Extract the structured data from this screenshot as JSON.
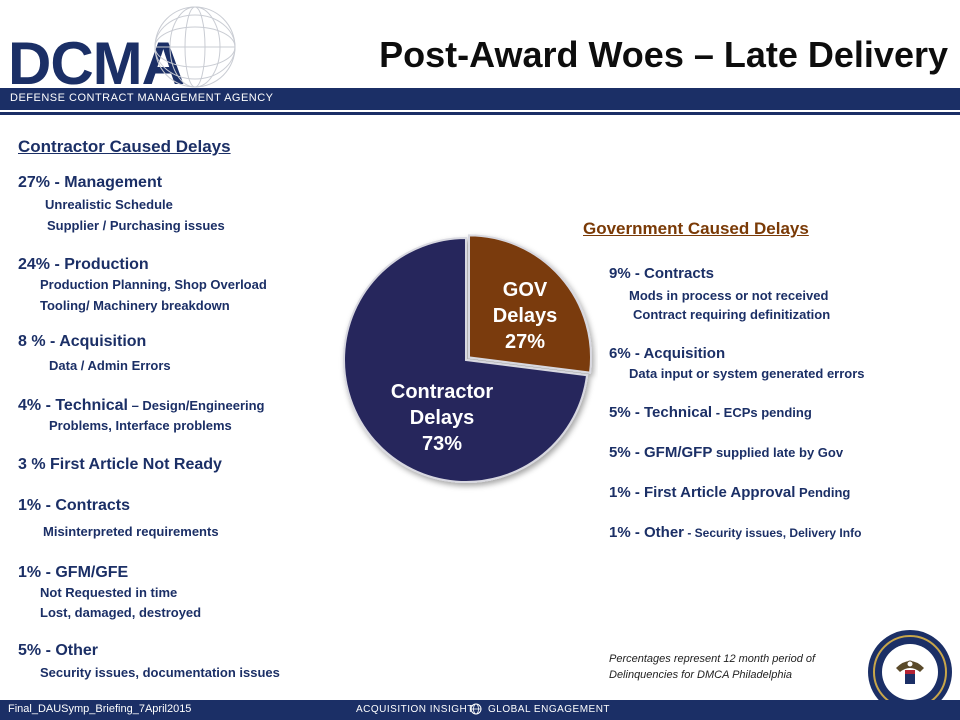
{
  "header": {
    "logo_text": "DCMA",
    "agency_name": "DEFENSE CONTRACT MANAGEMENT AGENCY",
    "title": "Post-Award Woes – Late Delivery"
  },
  "contractor": {
    "title": "Contractor Caused Delays",
    "management": {
      "head": "27% - Management",
      "sub1": "Unrealistic Schedule",
      "sub2": "Supplier / Purchasing issues"
    },
    "production": {
      "head": "24% - Production",
      "sub1": "Production Planning, Shop Overload",
      "sub2": "Tooling/ Machinery breakdown"
    },
    "acquisition": {
      "head": "8 % - Acquisition",
      "sub1": "Data / Admin Errors"
    },
    "technical": {
      "head": "4% - Technical",
      "head_suffix": " – Design/Engineering",
      "sub1": "Problems, Interface problems"
    },
    "first_article": {
      "head": "3 % First Article Not Ready"
    },
    "contracts": {
      "head": "1% - Contracts",
      "sub1": "Misinterpreted requirements"
    },
    "gfm": {
      "head": "1% - GFM/GFE",
      "sub1": "Not Requested in time",
      "sub2": "Lost, damaged, destroyed"
    },
    "other": {
      "head": "5% - Other",
      "sub1": "Security issues, documentation issues"
    }
  },
  "government": {
    "title": "Government Caused Delays",
    "contracts": {
      "head": "9% - Contracts",
      "sub1": "Mods in process or not received",
      "sub2": "Contract requiring definitization"
    },
    "acquisition": {
      "head": "6% - Acquisition",
      "sub1": "Data input or system generated errors"
    },
    "technical": {
      "head": "5% - Technical",
      "suffix": " - ECPs pending"
    },
    "gfm": {
      "head": "5% - GFM/GFP",
      "suffix": " supplied late by Gov"
    },
    "first_article": {
      "head": "1% - First Article Approval",
      "suffix": " Pending"
    },
    "other": {
      "head": "1% - Other",
      "suffix": " - Security issues, Delivery Info"
    },
    "note": "Percentages represent 12 month period of Delinquencies for DMCA Philadelphia"
  },
  "chart_data": {
    "type": "pie",
    "slices": [
      {
        "name": "Contractor Delays",
        "value": 73,
        "label_line1": "Contractor",
        "label_line2": "Delays",
        "label_line3": "73%",
        "color": "#26265c"
      },
      {
        "name": "GOV Delays",
        "value": 27,
        "label_line1": "GOV",
        "label_line2": "Delays",
        "label_line3": "27%",
        "color": "#7a3b0a"
      }
    ]
  },
  "footer": {
    "filename": "Final_DAUSymp_Briefing_7April2015",
    "tagline_left": "ACQUISITION INSIGHT",
    "tagline_right": "GLOBAL ENGAGEMENT"
  },
  "colors": {
    "navy": "#1b2f66",
    "brown": "#7a3a06"
  }
}
